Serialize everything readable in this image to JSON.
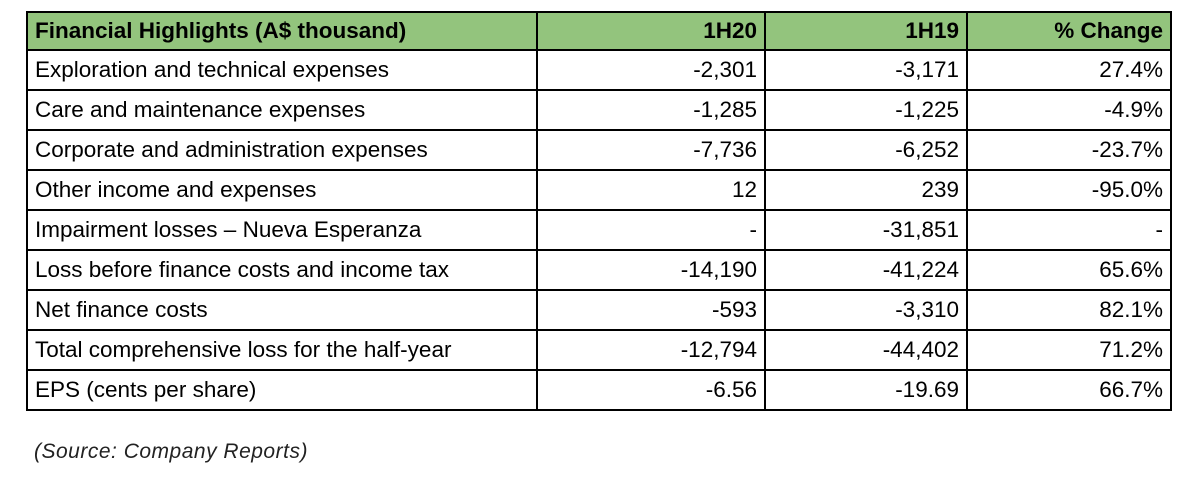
{
  "table": {
    "header": [
      "Financial Highlights (A$ thousand)",
      "1H20",
      "1H19",
      "% Change"
    ],
    "rows": [
      [
        "Exploration and technical expenses",
        "-2,301",
        "-3,171",
        "27.4%"
      ],
      [
        "Care and maintenance expenses",
        "-1,285",
        "-1,225",
        "-4.9%"
      ],
      [
        "Corporate and administration expenses",
        "-7,736",
        "-6,252",
        "-23.7%"
      ],
      [
        "Other income and expenses",
        "12",
        "239",
        "-95.0%"
      ],
      [
        "Impairment losses – Nueva Esperanza",
        "-",
        "-31,851",
        "-"
      ],
      [
        "Loss before finance costs and income tax",
        "-14,190",
        "-41,224",
        "65.6%"
      ],
      [
        "Net finance costs",
        "-593",
        "-3,310",
        "82.1%"
      ],
      [
        "Total comprehensive loss for the half-year",
        "-12,794",
        "-44,402",
        "71.2%"
      ],
      [
        "EPS (cents per share)",
        "-6.56",
        "-19.69",
        "66.7%"
      ]
    ]
  },
  "source": "(Source: Company Reports)"
}
